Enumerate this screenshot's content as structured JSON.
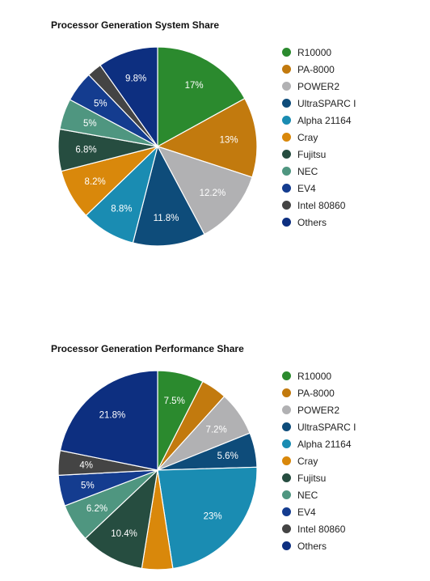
{
  "chart_data": [
    {
      "type": "pie",
      "title": "Processor Generation System Share",
      "categories": [
        "R10000",
        "PA-8000",
        "POWER2",
        "UltraSPARC I",
        "Alpha 21164",
        "Cray",
        "Fujitsu",
        "NEC",
        "EV4",
        "Intel 80860",
        "Others"
      ],
      "values": [
        17,
        13,
        12.2,
        11.8,
        8.8,
        8.2,
        6.8,
        5,
        5,
        2.4,
        9.8
      ],
      "labels": [
        "17%",
        "13%",
        "12.2%",
        "11.8%",
        "8.8%",
        "8.2%",
        "6.8%",
        "5%",
        "5%",
        "",
        "9.8%"
      ],
      "colors": [
        "#2b8a2e",
        "#c27a0e",
        "#b1b1b3",
        "#0e4c7a",
        "#1a8cb2",
        "#d9880b",
        "#264d40",
        "#4f9680",
        "#143c8f",
        "#444444",
        "#0d2f80"
      ],
      "legend_position": "right"
    },
    {
      "type": "pie",
      "title": "Processor Generation Performance Share",
      "categories": [
        "R10000",
        "PA-8000",
        "POWER2",
        "UltraSPARC I",
        "Alpha 21164",
        "Cray",
        "Fujitsu",
        "NEC",
        "EV4",
        "Intel 80860",
        "Others"
      ],
      "values": [
        7.5,
        4.2,
        7.2,
        5.6,
        23,
        5,
        10.4,
        6.2,
        5,
        4,
        21.8
      ],
      "labels": [
        "7.5%",
        "",
        "7.2%",
        "5.6%",
        "23%",
        "",
        "10.4%",
        "6.2%",
        "5%",
        "4%",
        "21.8%"
      ],
      "colors": [
        "#2b8a2e",
        "#c27a0e",
        "#b1b1b3",
        "#0e4c7a",
        "#1a8cb2",
        "#d9880b",
        "#264d40",
        "#4f9680",
        "#143c8f",
        "#444444",
        "#0d2f80"
      ],
      "legend_position": "right"
    }
  ]
}
